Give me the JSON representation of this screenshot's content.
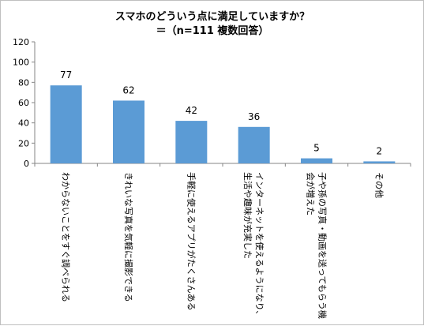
{
  "chart_data": {
    "type": "bar",
    "title": "スマホのどういう点に満足していますか？",
    "subtitle": "＝（n=111 複数回答）",
    "categories": [
      [
        "わからないことをすぐ調べられる"
      ],
      [
        "きれいな写真を気軽に撮影できる"
      ],
      [
        "手軽に使えるアプリがたくさんある"
      ],
      [
        "インターネットを使えるようになり、",
        "生活や趣味が充実した"
      ],
      [
        "子や孫の写真・動画を送ってもらう機",
        "会が増えた"
      ],
      [
        "その他"
      ]
    ],
    "values": [
      77,
      62,
      42,
      36,
      5,
      2
    ],
    "ylim": [
      0,
      120
    ],
    "yticks": [
      0,
      20,
      40,
      60,
      80,
      100,
      120
    ],
    "grid": false,
    "bar_color": "#5b9bd5"
  }
}
